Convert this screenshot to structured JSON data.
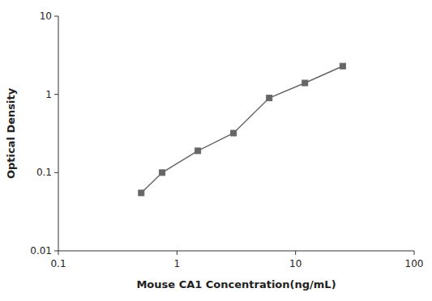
{
  "chart_data": {
    "type": "line",
    "x": [
      0.5,
      0.75,
      1.5,
      3.0,
      6.0,
      12.0,
      25.0
    ],
    "values": [
      0.055,
      0.1,
      0.19,
      0.32,
      0.9,
      1.4,
      2.3
    ],
    "xlabel": "Mouse CA1 Concentration(ng/mL)",
    "ylabel": "Optical Density",
    "xlim": [
      0.1,
      100
    ],
    "ylim": [
      0.01,
      10
    ],
    "xticks": [
      0.1,
      1,
      10,
      100
    ],
    "yticks": [
      0.01,
      0.1,
      1,
      10
    ],
    "log": true,
    "grid": false,
    "color": "#666666",
    "marker": "square"
  }
}
